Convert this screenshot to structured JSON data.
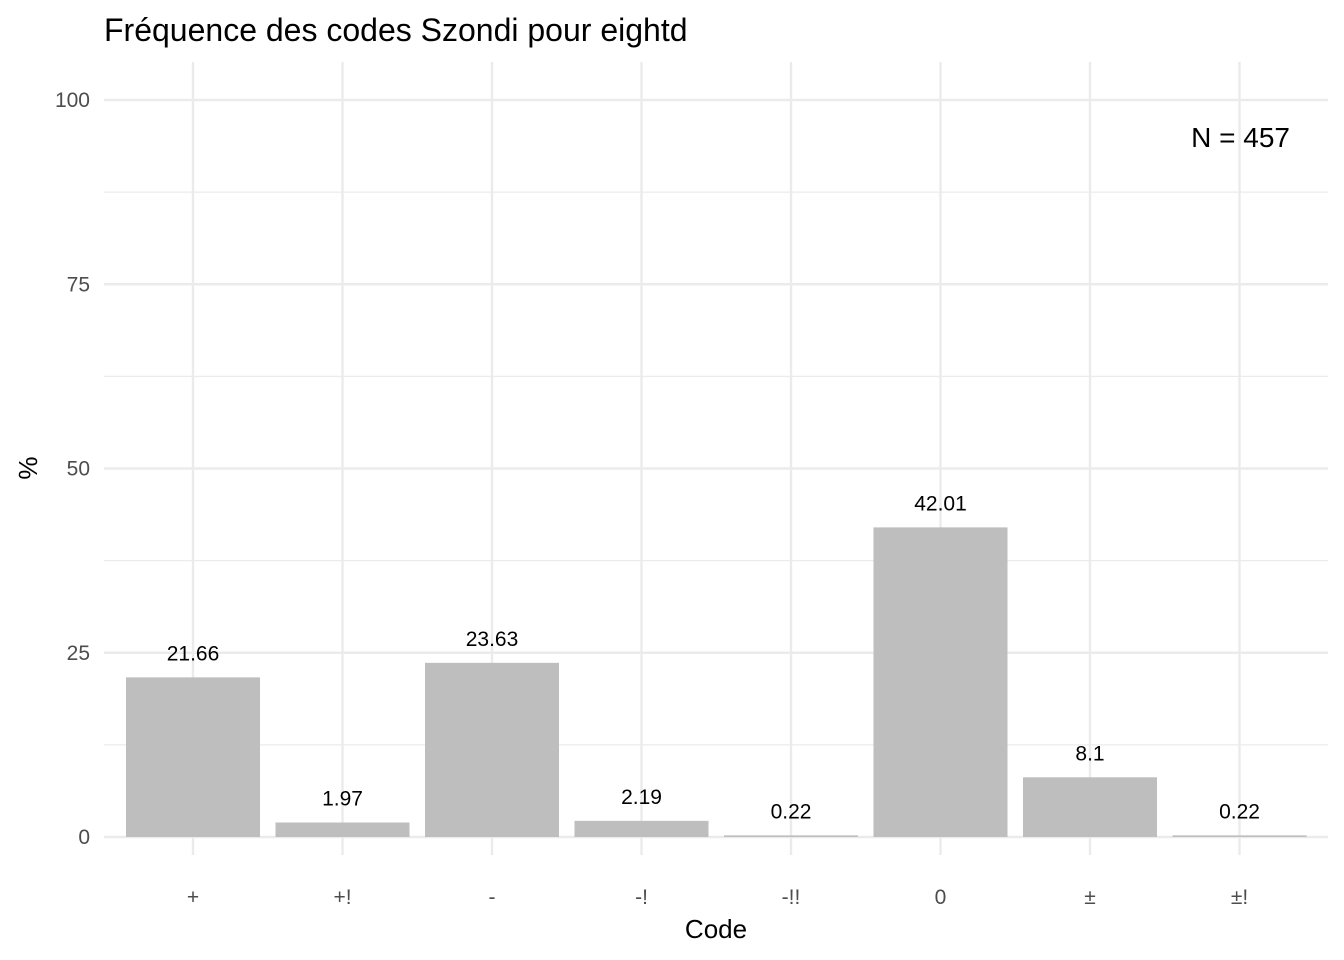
{
  "chart_data": {
    "type": "bar",
    "title": "Fréquence des codes Szondi pour eightd",
    "xlabel": "Code",
    "ylabel": "%",
    "categories": [
      "+",
      "+!",
      "-",
      "-!",
      "-!!",
      "0",
      "±",
      "±!"
    ],
    "values": [
      21.66,
      1.97,
      23.63,
      2.19,
      0.22,
      42.01,
      8.1,
      0.22
    ],
    "value_labels": [
      "21.66",
      "1.97",
      "23.63",
      "2.19",
      "0.22",
      "42.01",
      "8.1",
      "0.22"
    ],
    "ylim": [
      0,
      100
    ],
    "yticks": [
      0,
      25,
      50,
      75,
      100
    ],
    "annotation": "N = 457",
    "grid": true,
    "bar_color": "#bebebe",
    "grid_color": "#ebebeb"
  }
}
